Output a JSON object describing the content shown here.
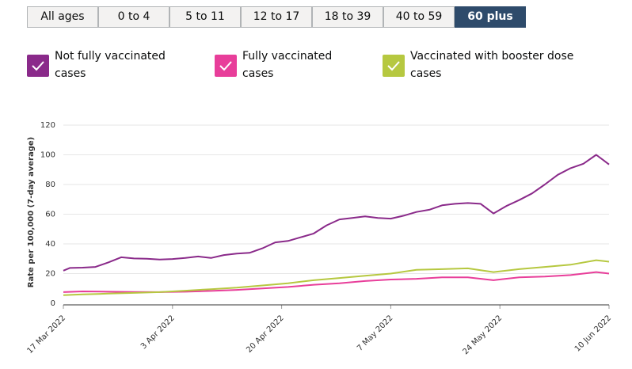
{
  "age_tabs": [
    {
      "label": "All ages",
      "active": false
    },
    {
      "label": "0 to 4",
      "active": false
    },
    {
      "label": "5 to 11",
      "active": false
    },
    {
      "label": "12 to 17",
      "active": false
    },
    {
      "label": "18 to 39",
      "active": false
    },
    {
      "label": "40 to 59",
      "active": false
    },
    {
      "label": "60 plus",
      "active": true
    }
  ],
  "legend": [
    {
      "line1": "Not fully vaccinated",
      "line2": "cases",
      "color": "#8a2a8a",
      "checked": true
    },
    {
      "line1": "Fully vaccinated",
      "line2": "cases",
      "color": "#e83e9a",
      "checked": true
    },
    {
      "line1": "Vaccinated with booster dose",
      "line2": "cases",
      "color": "#b6c840",
      "checked": true
    }
  ],
  "chart_data": {
    "type": "line",
    "title": "",
    "xlabel": "",
    "ylabel": "Rate per 100,000 (7-day average)",
    "ylim": [
      0,
      120
    ],
    "yticks": [
      0,
      20,
      40,
      60,
      80,
      100,
      120
    ],
    "xlim": [
      "2022-03-17",
      "2022-06-10"
    ],
    "xticks": [
      "17 Mar 2022",
      "3 Apr 2022",
      "20 Apr 2022",
      "7 May 2022",
      "24 May 2022",
      "10 Jun 2022"
    ],
    "grid": true,
    "series": [
      {
        "name": "Not fully vaccinated cases",
        "color": "#8a2a8a",
        "points": [
          [
            "2022-03-17",
            22
          ],
          [
            "2022-03-18",
            23.8
          ],
          [
            "2022-03-20",
            24
          ],
          [
            "2022-03-22",
            24.5
          ],
          [
            "2022-03-24",
            27.5
          ],
          [
            "2022-03-26",
            31
          ],
          [
            "2022-03-28",
            30.2
          ],
          [
            "2022-03-30",
            30
          ],
          [
            "2022-04-01",
            29.5
          ],
          [
            "2022-04-03",
            29.8
          ],
          [
            "2022-04-05",
            30.5
          ],
          [
            "2022-04-07",
            31.5
          ],
          [
            "2022-04-09",
            30.5
          ],
          [
            "2022-04-11",
            32.5
          ],
          [
            "2022-04-13",
            33.5
          ],
          [
            "2022-04-15",
            34
          ],
          [
            "2022-04-17",
            37
          ],
          [
            "2022-04-19",
            41
          ],
          [
            "2022-04-21",
            42
          ],
          [
            "2022-04-23",
            44.5
          ],
          [
            "2022-04-25",
            47
          ],
          [
            "2022-04-27",
            52.5
          ],
          [
            "2022-04-29",
            56.5
          ],
          [
            "2022-05-01",
            57.5
          ],
          [
            "2022-05-03",
            58.5
          ],
          [
            "2022-05-05",
            57.5
          ],
          [
            "2022-05-07",
            57
          ],
          [
            "2022-05-09",
            59
          ],
          [
            "2022-05-11",
            61.5
          ],
          [
            "2022-05-13",
            63
          ],
          [
            "2022-05-15",
            66
          ],
          [
            "2022-05-17",
            67
          ],
          [
            "2022-05-19",
            67.5
          ],
          [
            "2022-05-21",
            67
          ],
          [
            "2022-05-23",
            60.5
          ],
          [
            "2022-05-25",
            65.5
          ],
          [
            "2022-05-27",
            69.5
          ],
          [
            "2022-05-29",
            74
          ],
          [
            "2022-05-31",
            80
          ],
          [
            "2022-06-02",
            86.5
          ],
          [
            "2022-06-04",
            91
          ],
          [
            "2022-06-06",
            94
          ],
          [
            "2022-06-08",
            100
          ],
          [
            "2022-06-10",
            93.5
          ]
        ]
      },
      {
        "name": "Fully vaccinated cases",
        "color": "#e83e9a",
        "points": [
          [
            "2022-03-17",
            7.5
          ],
          [
            "2022-03-20",
            8
          ],
          [
            "2022-03-24",
            7.8
          ],
          [
            "2022-03-28",
            7.6
          ],
          [
            "2022-04-01",
            7.5
          ],
          [
            "2022-04-05",
            7.8
          ],
          [
            "2022-04-09",
            8.3
          ],
          [
            "2022-04-13",
            9
          ],
          [
            "2022-04-17",
            10
          ],
          [
            "2022-04-21",
            11
          ],
          [
            "2022-04-25",
            12.5
          ],
          [
            "2022-04-29",
            13.5
          ],
          [
            "2022-05-03",
            15
          ],
          [
            "2022-05-07",
            16
          ],
          [
            "2022-05-11",
            16.5
          ],
          [
            "2022-05-15",
            17.5
          ],
          [
            "2022-05-19",
            17.5
          ],
          [
            "2022-05-23",
            15.5
          ],
          [
            "2022-05-27",
            17.5
          ],
          [
            "2022-05-31",
            18
          ],
          [
            "2022-06-04",
            19
          ],
          [
            "2022-06-08",
            21
          ],
          [
            "2022-06-10",
            20
          ]
        ]
      },
      {
        "name": "Vaccinated with booster dose cases",
        "color": "#b6c840",
        "points": [
          [
            "2022-03-17",
            5.5
          ],
          [
            "2022-03-20",
            6
          ],
          [
            "2022-03-24",
            6.5
          ],
          [
            "2022-03-28",
            7
          ],
          [
            "2022-04-01",
            7.5
          ],
          [
            "2022-04-05",
            8.5
          ],
          [
            "2022-04-09",
            9.5
          ],
          [
            "2022-04-13",
            10.5
          ],
          [
            "2022-04-17",
            12
          ],
          [
            "2022-04-21",
            13.5
          ],
          [
            "2022-04-25",
            15.5
          ],
          [
            "2022-04-29",
            17
          ],
          [
            "2022-05-03",
            18.5
          ],
          [
            "2022-05-07",
            20
          ],
          [
            "2022-05-11",
            22.5
          ],
          [
            "2022-05-15",
            23
          ],
          [
            "2022-05-19",
            23.5
          ],
          [
            "2022-05-23",
            21
          ],
          [
            "2022-05-27",
            23
          ],
          [
            "2022-05-31",
            24.5
          ],
          [
            "2022-06-04",
            26
          ],
          [
            "2022-06-08",
            29
          ],
          [
            "2022-06-10",
            28
          ]
        ]
      }
    ]
  }
}
